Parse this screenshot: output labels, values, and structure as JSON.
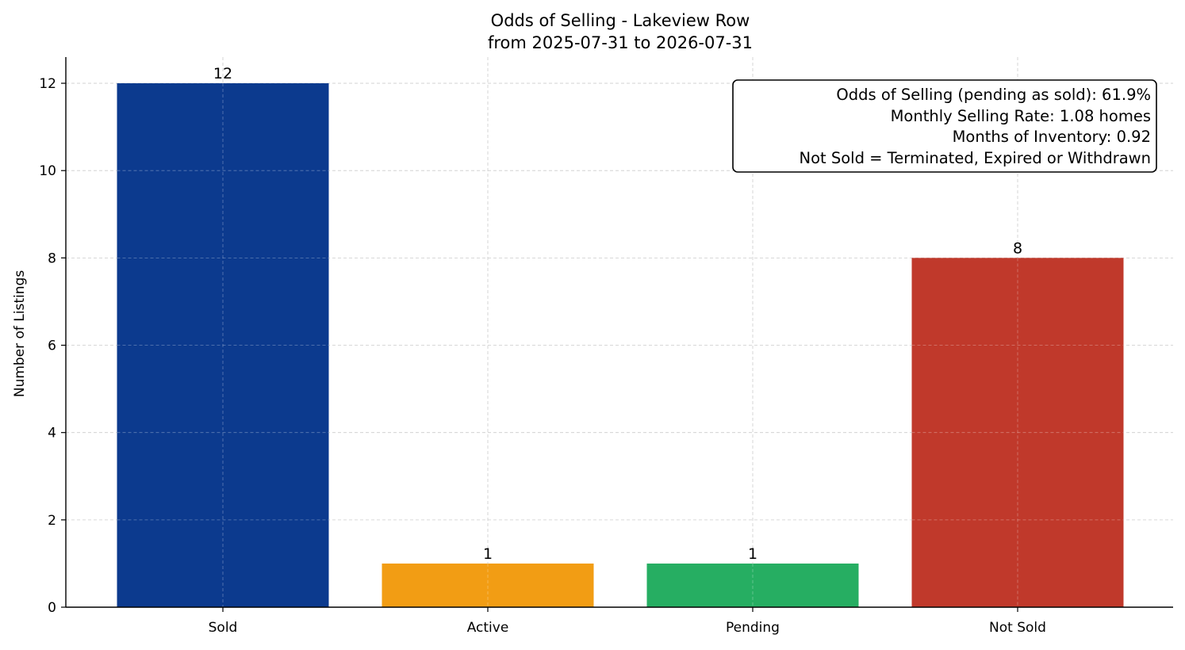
{
  "chart_data": {
    "type": "bar",
    "title": "Odds of Selling - Lakeview Row",
    "subtitle": "from 2025-07-31 to 2026-07-31",
    "xlabel": "",
    "ylabel": "Number of Listings",
    "categories": [
      "Sold",
      "Active",
      "Pending",
      "Not Sold"
    ],
    "values": [
      12,
      1,
      1,
      8
    ],
    "data_labels": [
      "12",
      "1",
      "1",
      "8"
    ],
    "colors": [
      "#0c3a8e",
      "#f29d14",
      "#26ae62",
      "#c0392b"
    ],
    "ylim": [
      0,
      12.6
    ],
    "yticks": [
      0,
      2,
      4,
      6,
      8,
      10,
      12
    ],
    "ytick_labels": [
      "0",
      "2",
      "4",
      "6",
      "8",
      "10",
      "12"
    ],
    "grid": true,
    "annotation_box": {
      "placement": "top-right",
      "lines": [
        "Odds of Selling (pending as sold): 61.9%",
        "Monthly Selling Rate: 1.08 homes",
        "Months of Inventory: 0.92",
        "Not Sold = Terminated, Expired or Withdrawn"
      ]
    }
  }
}
